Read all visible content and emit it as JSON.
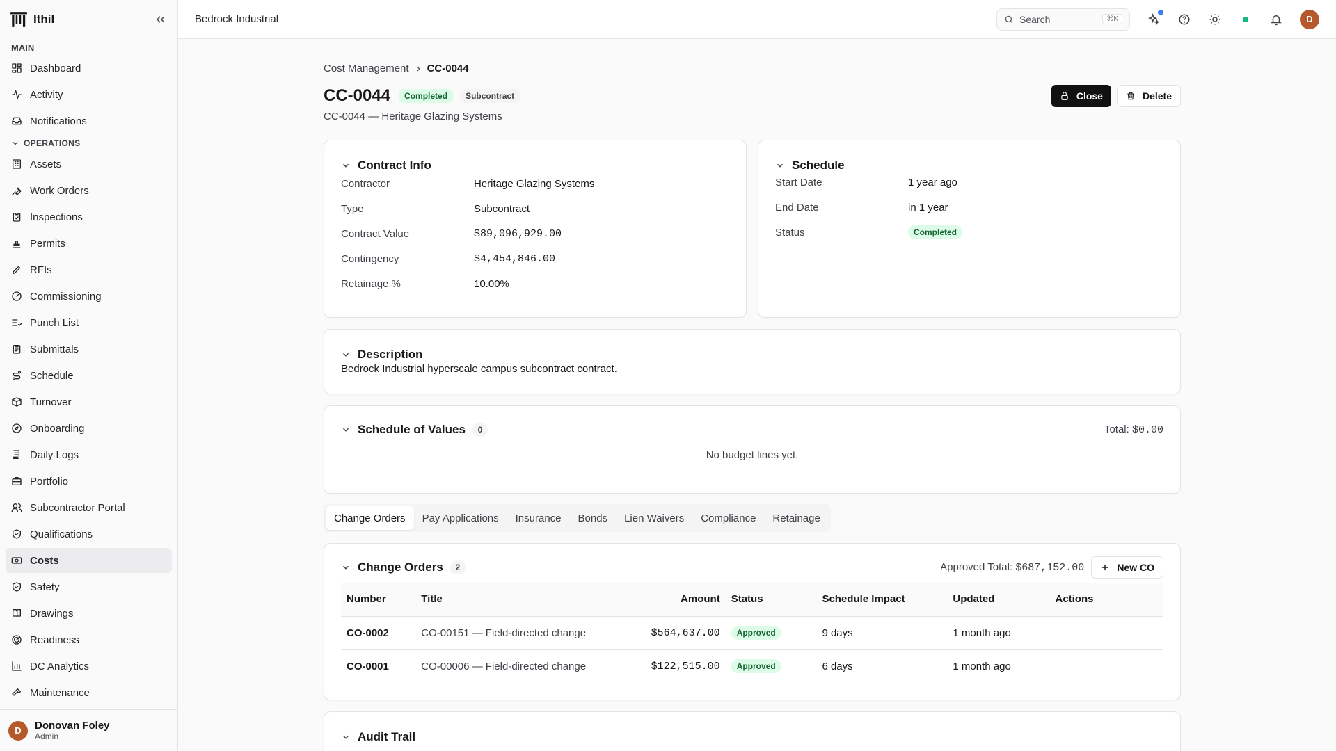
{
  "app": {
    "name": "Ithil"
  },
  "sidebar": {
    "main_label": "MAIN",
    "main_items": [
      {
        "label": "Dashboard",
        "icon": "dashboard-icon"
      },
      {
        "label": "Activity",
        "icon": "activity-icon"
      },
      {
        "label": "Notifications",
        "icon": "inbox-icon"
      }
    ],
    "ops_label": "OPERATIONS",
    "ops_items": [
      {
        "label": "Assets",
        "icon": "building-icon"
      },
      {
        "label": "Work Orders",
        "icon": "wrench-icon"
      },
      {
        "label": "Inspections",
        "icon": "clipboard-check-icon"
      },
      {
        "label": "Permits",
        "icon": "stamp-icon"
      },
      {
        "label": "RFIs",
        "icon": "pencil-icon"
      },
      {
        "label": "Commissioning",
        "icon": "gauge-icon"
      },
      {
        "label": "Punch List",
        "icon": "list-check-icon"
      },
      {
        "label": "Submittals",
        "icon": "clipboard-icon"
      },
      {
        "label": "Schedule",
        "icon": "route-icon"
      },
      {
        "label": "Turnover",
        "icon": "package-icon"
      },
      {
        "label": "Onboarding",
        "icon": "compass-icon"
      },
      {
        "label": "Daily Logs",
        "icon": "scroll-icon"
      },
      {
        "label": "Portfolio",
        "icon": "briefcase-icon"
      },
      {
        "label": "Subcontractor Portal",
        "icon": "users-icon"
      },
      {
        "label": "Qualifications",
        "icon": "shield-check-icon"
      },
      {
        "label": "Costs",
        "icon": "banknote-icon"
      },
      {
        "label": "Safety",
        "icon": "shield-icon"
      },
      {
        "label": "Drawings",
        "icon": "book-icon"
      },
      {
        "label": "Readiness",
        "icon": "radar-icon"
      },
      {
        "label": "DC Analytics",
        "icon": "bar-chart-icon"
      },
      {
        "label": "Maintenance",
        "icon": "hammer-icon"
      }
    ],
    "active": "Costs",
    "user": {
      "initial": "D",
      "name": "Donovan Foley",
      "role": "Admin"
    }
  },
  "topbar": {
    "workspace": "Bedrock Industrial",
    "search_placeholder": "Search",
    "search_shortcut": "⌘K",
    "avatar_initial": "D"
  },
  "breadcrumb": {
    "parent": "Cost Management",
    "current": "CC-0044"
  },
  "header": {
    "title": "CC-0044",
    "status_badge": "Completed",
    "type_badge": "Subcontract",
    "subtitle": "CC-0044 — Heritage Glazing Systems",
    "close_label": "Close",
    "delete_label": "Delete"
  },
  "contract_info": {
    "title": "Contract Info",
    "rows": [
      {
        "k": "Contractor",
        "v": "Heritage Glazing Systems",
        "mono": false
      },
      {
        "k": "Type",
        "v": "Subcontract",
        "mono": false
      },
      {
        "k": "Contract Value",
        "v": "$89,096,929.00",
        "mono": true
      },
      {
        "k": "Contingency",
        "v": "$4,454,846.00",
        "mono": true
      },
      {
        "k": "Retainage %",
        "v": "10.00%",
        "mono": false
      }
    ]
  },
  "schedule": {
    "title": "Schedule",
    "start_label": "Start Date",
    "start_value": "1 year ago",
    "end_label": "End Date",
    "end_value": "in 1 year",
    "status_label": "Status",
    "status_value": "Completed"
  },
  "description": {
    "title": "Description",
    "text": "Bedrock Industrial hyperscale campus subcontract contract."
  },
  "sov": {
    "title": "Schedule of Values",
    "count": "0",
    "total_label": "Total:",
    "total_value": "$0.00",
    "empty": "No budget lines yet."
  },
  "tabs": [
    "Change Orders",
    "Pay Applications",
    "Insurance",
    "Bonds",
    "Lien Waivers",
    "Compliance",
    "Retainage"
  ],
  "change_orders": {
    "title": "Change Orders",
    "count": "2",
    "approved_label": "Approved Total:",
    "approved_value": "$687,152.00",
    "new_label": "New CO",
    "columns": [
      "Number",
      "Title",
      "Amount",
      "Status",
      "Schedule Impact",
      "Updated",
      "Actions"
    ],
    "rows": [
      {
        "number": "CO-0002",
        "title": "CO-00151 — Field-directed change",
        "amount": "$564,637.00",
        "status": "Approved",
        "impact": "9 days",
        "updated": "1 month ago"
      },
      {
        "number": "CO-0001",
        "title": "CO-00006 — Field-directed change",
        "amount": "$122,515.00",
        "status": "Approved",
        "impact": "6 days",
        "updated": "1 month ago"
      }
    ]
  },
  "audit": {
    "title": "Audit Trail"
  }
}
